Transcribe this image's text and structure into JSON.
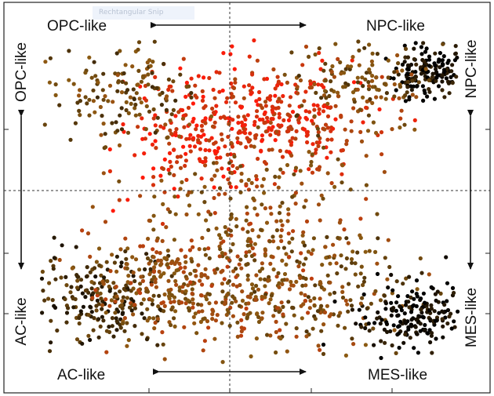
{
  "chart_data": {
    "type": "scatter",
    "title": "",
    "quadrant_labels": {
      "top_left": "OPC-like",
      "top_right": "NPC-like",
      "bottom_left": "AC-like",
      "bottom_right": "MES-like"
    },
    "side_labels": {
      "left_top": "OPC-like",
      "left_bottom": "AC-like",
      "right_top": "NPC-like",
      "right_bottom": "MES-like"
    },
    "xlim": [
      -1,
      1
    ],
    "ylim": [
      -1,
      1
    ],
    "grid": false,
    "center_lines": "dashed",
    "arrows": [
      "horizontal-top",
      "horizontal-bottom",
      "vertical-left",
      "vertical-right"
    ],
    "color_scale": {
      "low": "#000000",
      "mid": "#8a5a12",
      "high": "#ff1a0a"
    },
    "point_clusters": [
      {
        "x": 0.87,
        "y": 0.82,
        "spread": 0.09,
        "n": 160,
        "intensity": 0.05
      },
      {
        "x": -0.2,
        "y": 0.48,
        "spread": 0.22,
        "n": 240,
        "intensity": 0.9
      },
      {
        "x": 0.22,
        "y": 0.5,
        "spread": 0.22,
        "n": 220,
        "intensity": 0.8
      },
      {
        "x": -0.6,
        "y": 0.68,
        "spread": 0.18,
        "n": 150,
        "intensity": 0.4
      },
      {
        "x": 0.52,
        "y": 0.72,
        "spread": 0.17,
        "n": 140,
        "intensity": 0.45
      },
      {
        "x": 0.0,
        "y": -0.05,
        "spread": 0.3,
        "n": 230,
        "intensity": 0.55
      },
      {
        "x": -0.72,
        "y": -0.62,
        "spread": 0.16,
        "n": 200,
        "intensity": 0.25
      },
      {
        "x": -0.4,
        "y": -0.55,
        "spread": 0.2,
        "n": 230,
        "intensity": 0.55
      },
      {
        "x": 0.35,
        "y": -0.55,
        "spread": 0.2,
        "n": 180,
        "intensity": 0.45
      },
      {
        "x": 0.8,
        "y": -0.72,
        "spread": 0.13,
        "n": 200,
        "intensity": 0.05
      },
      {
        "x": 0.0,
        "y": -0.6,
        "spread": 0.22,
        "n": 150,
        "intensity": 0.55
      }
    ]
  },
  "overlay": {
    "tooltip_text": "Rechtangular Snip"
  }
}
